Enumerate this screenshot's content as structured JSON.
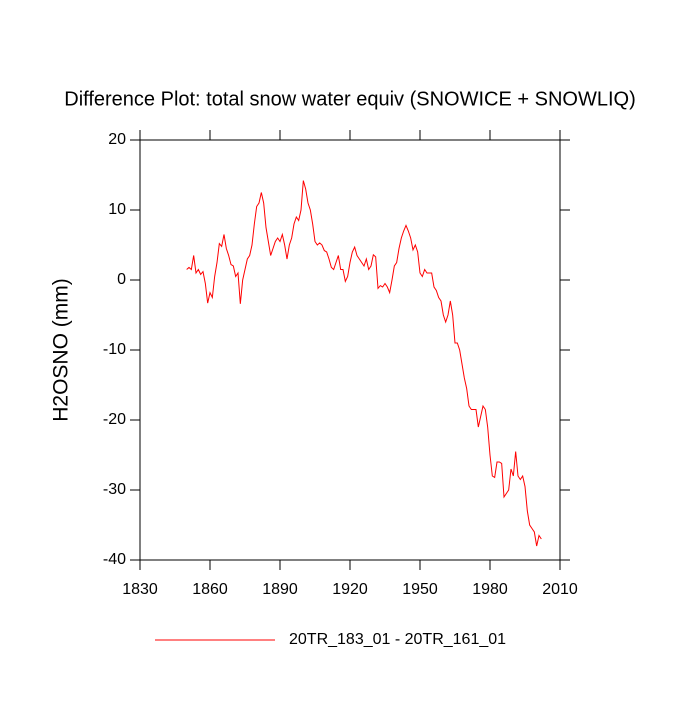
{
  "chart_data": {
    "type": "line",
    "title": "Difference Plot: total snow water equiv (SNOWICE + SNOWLIQ)",
    "y_label": "H2OSNO  (mm)",
    "x": [
      1850,
      1851,
      1852,
      1853,
      1854,
      1855,
      1856,
      1857,
      1858,
      1859,
      1860,
      1861,
      1862,
      1863,
      1864,
      1865,
      1866,
      1867,
      1868,
      1869,
      1870,
      1871,
      1872,
      1873,
      1874,
      1875,
      1876,
      1877,
      1878,
      1879,
      1880,
      1881,
      1882,
      1883,
      1884,
      1885,
      1886,
      1887,
      1888,
      1889,
      1890,
      1891,
      1892,
      1893,
      1894,
      1895,
      1896,
      1897,
      1898,
      1899,
      1900,
      1901,
      1902,
      1903,
      1904,
      1905,
      1906,
      1907,
      1908,
      1909,
      1910,
      1911,
      1912,
      1913,
      1914,
      1915,
      1916,
      1917,
      1918,
      1919,
      1920,
      1921,
      1922,
      1923,
      1924,
      1925,
      1926,
      1927,
      1928,
      1929,
      1930,
      1931,
      1932,
      1933,
      1934,
      1935,
      1936,
      1937,
      1938,
      1939,
      1940,
      1941,
      1942,
      1943,
      1944,
      1945,
      1946,
      1947,
      1948,
      1949,
      1950,
      1951,
      1952,
      1953,
      1954,
      1955,
      1956,
      1957,
      1958,
      1959,
      1960,
      1961,
      1962,
      1963,
      1964,
      1965,
      1966,
      1967,
      1968,
      1969,
      1970,
      1971,
      1972,
      1973,
      1974,
      1975,
      1976,
      1977,
      1978,
      1979,
      1980,
      1981,
      1982,
      1983,
      1984,
      1985,
      1986,
      1987,
      1988,
      1989,
      1990,
      1991,
      1992,
      1993,
      1994,
      1995,
      1996,
      1997,
      1998,
      1999,
      2000,
      2001,
      2002
    ],
    "series": [
      {
        "name": "20TR_183_01 - 20TR_161_01",
        "color": "#ff0000",
        "values": [
          1.5,
          1.8,
          1.5,
          3.5,
          1,
          1.5,
          0.8,
          1.2,
          -0.5,
          -3.3,
          -1.8,
          -2.5,
          0.5,
          2.5,
          5.2,
          4.8,
          6.5,
          4.5,
          3.5,
          2.2,
          2,
          0.5,
          1,
          -3.4,
          0,
          1.5,
          3,
          3.5,
          5,
          8,
          10.5,
          11,
          12.5,
          11,
          7.5,
          5.5,
          3.5,
          4.5,
          5.5,
          6,
          5.5,
          6.5,
          5,
          3,
          5,
          6,
          8,
          9,
          8.5,
          10,
          14.2,
          13,
          11,
          10,
          8,
          5.5,
          5,
          5.3,
          5,
          4.2,
          4,
          3,
          1.8,
          1.5,
          2.5,
          3.5,
          1.5,
          1.5,
          -0.2,
          0.5,
          2.5,
          4,
          4.7,
          3.5,
          3,
          2.5,
          2,
          3,
          1.5,
          2,
          3.6,
          3.3,
          -1.2,
          -0.8,
          -1,
          -0.5,
          -1,
          -1.8,
          0,
          2,
          2.5,
          4.5,
          6,
          7,
          7.8,
          7,
          6,
          4.3,
          5,
          4,
          1,
          0.5,
          1.5,
          1,
          1,
          1,
          -1,
          -1.5,
          -2.5,
          -3,
          -5,
          -6,
          -5,
          -3,
          -5,
          -9,
          -9,
          -10,
          -12,
          -14,
          -15.5,
          -18,
          -18.5,
          -18.5,
          -18.5,
          -21,
          -19.5,
          -18,
          -18.5,
          -21,
          -25,
          -28,
          -28.2,
          -26,
          -26,
          -26.2,
          -31,
          -30.5,
          -30,
          -27,
          -28,
          -24.5,
          -28,
          -28.5,
          -28,
          -29.5,
          -33,
          -35,
          -35.5,
          -36,
          -38,
          -36.5,
          -37
        ]
      }
    ],
    "xlim": [
      1830,
      2010
    ],
    "xticks": [
      1830,
      1860,
      1890,
      1920,
      1950,
      1980,
      2010
    ],
    "ylim": [
      -40,
      20
    ],
    "yticks": [
      -40,
      -30,
      -20,
      -10,
      0,
      10,
      20
    ]
  }
}
